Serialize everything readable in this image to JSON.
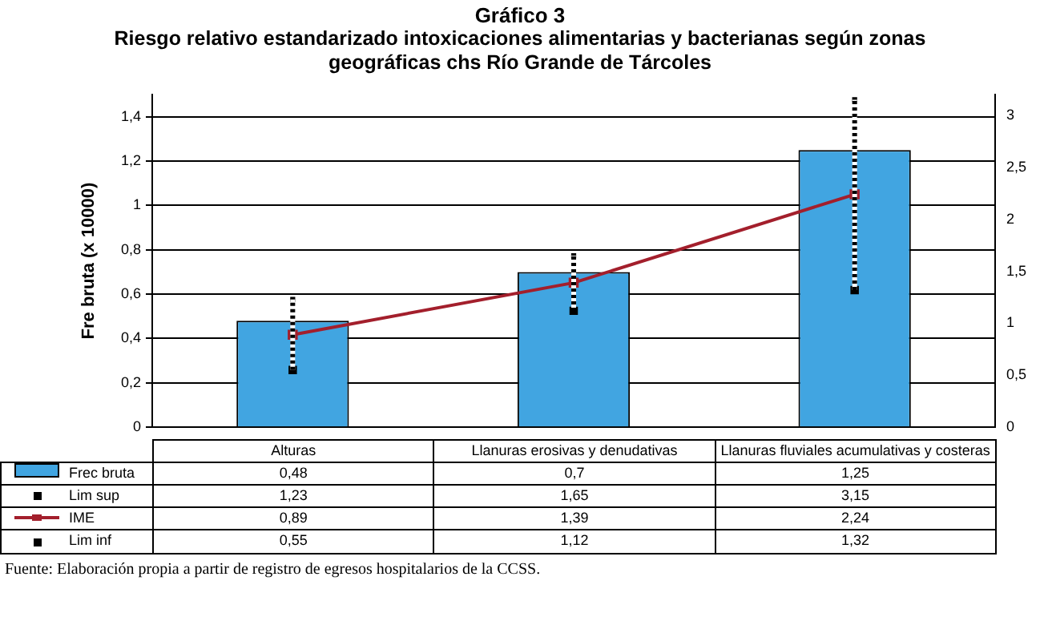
{
  "chart_data": {
    "type": "bar",
    "title": "Gráfico 3",
    "subtitle": "Riesgo relativo estandarizado intoxicaciones alimentarias y bacterianas según zonas geográficas chs Río Grande de Tárcoles",
    "ylabel": "Fre bruta (x 10000)",
    "categories": [
      "Alturas",
      "Llanuras erosivas y denudativas",
      "Llanuras fluviales acumulativas y costeras"
    ],
    "series": [
      {
        "name": "Frec bruta",
        "color": "#41a5e1",
        "values": [
          0.48,
          0.7,
          1.25
        ],
        "value_labels": [
          "0,48",
          "0,7",
          "1,25"
        ]
      },
      {
        "name": "Lim sup",
        "type": "scatter",
        "axis": "y2",
        "marker": "square",
        "line_style": "dotted",
        "color": "#000000",
        "values": [
          1.23,
          1.65,
          3.15
        ],
        "value_labels": [
          "1,23",
          "1,65",
          "3,15"
        ]
      },
      {
        "name": "IME",
        "type": "line",
        "axis": "y2",
        "marker": "square",
        "color": "#a31f2c",
        "values": [
          0.89,
          1.39,
          2.24
        ],
        "value_labels": [
          "0,89",
          "1,39",
          "2,24"
        ]
      },
      {
        "name": "Lim inf",
        "type": "scatter",
        "axis": "y2",
        "marker": "square",
        "color": "#000000",
        "values": [
          0.55,
          1.12,
          1.32
        ],
        "value_labels": [
          "0,55",
          "1,12",
          "1,32"
        ]
      }
    ],
    "ylim": [
      0,
      1.5
    ],
    "yticks": [
      0,
      {
        "value": 0.2,
        "label": "0,2"
      },
      {
        "value": 0.4,
        "label": "0,4"
      },
      {
        "value": 0.6,
        "label": "0,6"
      },
      {
        "value": 0.8,
        "label": "0,8"
      },
      1,
      {
        "value": 1.2,
        "label": "1,2"
      },
      {
        "value": 1.4,
        "label": "1,4"
      }
    ],
    "y2lim": [
      0,
      3.2
    ],
    "y2ticks": [
      0,
      {
        "value": 0.5,
        "label": "0,5"
      },
      1,
      {
        "value": 1.5,
        "label": "1,5"
      },
      2,
      {
        "value": 2.5,
        "label": "2,5"
      },
      3
    ],
    "grid": "y",
    "legend": "bottom",
    "annotations": [
      "Fuente: Elaboración propia a partir de registro de egresos hospitalarios de la CCSS."
    ]
  }
}
